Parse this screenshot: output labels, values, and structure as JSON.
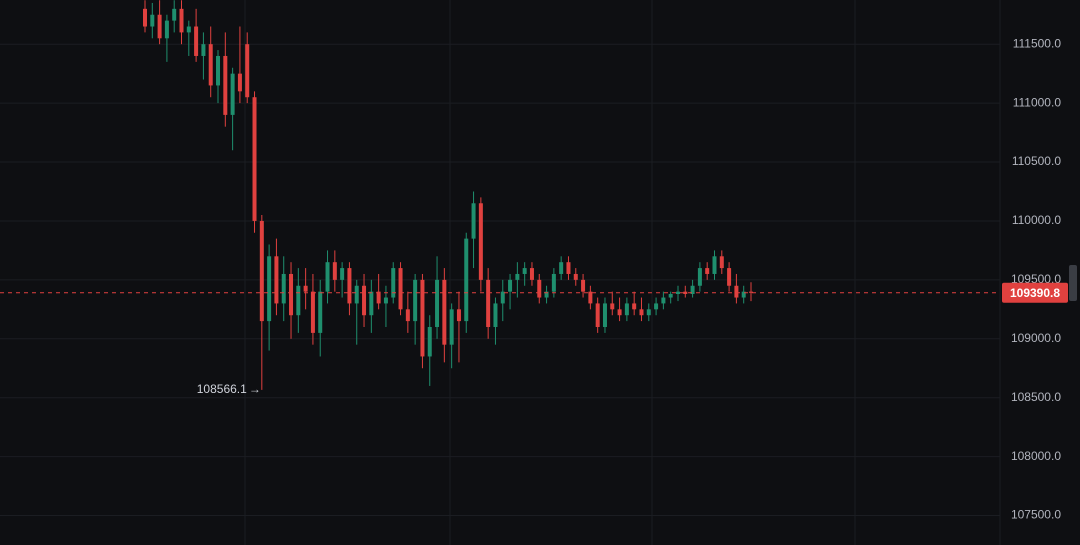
{
  "chart_data": {
    "type": "candlestick",
    "up_color": "#1f8f6e",
    "down_color": "#e0413f",
    "grid": true,
    "ylim": [
      107250,
      111875
    ],
    "yticks": [
      {
        "value": 107500,
        "label": "107500.0"
      },
      {
        "value": 108000,
        "label": "108000.0"
      },
      {
        "value": 108500,
        "label": "108500.0"
      },
      {
        "value": 109000,
        "label": "109000.0"
      },
      {
        "value": 109500,
        "label": "109500.0"
      },
      {
        "value": 110000,
        "label": "110000.0"
      },
      {
        "value": 110500,
        "label": "110500.0"
      },
      {
        "value": 111000,
        "label": "111000.0"
      },
      {
        "value": 111500,
        "label": "111500.0"
      }
    ],
    "last_price": 109390.8,
    "low_marker": 108566.1,
    "open": [
      111800,
      111650,
      111750,
      111550,
      111700,
      111800,
      111600,
      111650,
      111400,
      111500,
      111150,
      111400,
      110900,
      111250,
      111500,
      111050,
      110000,
      109150,
      109700,
      109300,
      109550,
      109200,
      109450,
      109400,
      109050,
      109400,
      109650,
      109500,
      109600,
      109300,
      109450,
      109200,
      109400,
      109300,
      109350,
      109600,
      109250,
      109150,
      109500,
      108850,
      109100,
      109500,
      108950,
      109250,
      109150,
      109850,
      110150,
      109500,
      109100,
      109300,
      109400,
      109500,
      109550,
      109600,
      109500,
      109350,
      109400,
      109550,
      109650,
      109550,
      109500,
      109400,
      109300,
      109100,
      109300,
      109250,
      109200,
      109300,
      109250,
      109200,
      109250,
      109300,
      109350,
      109380,
      109400,
      109380,
      109450,
      109600,
      109550,
      109700,
      109600,
      109450,
      109350,
      109400
    ],
    "high": [
      111873,
      111850,
      111873,
      111750,
      111873,
      111873,
      111700,
      111800,
      111600,
      111650,
      111450,
      111600,
      111300,
      111650,
      111600,
      111100,
      110050,
      109800,
      109850,
      109700,
      109650,
      109600,
      109600,
      109550,
      109500,
      109750,
      109750,
      109650,
      109650,
      109500,
      109550,
      109500,
      109550,
      109450,
      109650,
      109650,
      109400,
      109550,
      109550,
      109200,
      109700,
      109600,
      109300,
      109400,
      109900,
      110250,
      110200,
      109600,
      109350,
      109500,
      109550,
      109650,
      109650,
      109650,
      109550,
      109450,
      109600,
      109700,
      109700,
      109600,
      109550,
      109450,
      109350,
      109350,
      109400,
      109350,
      109350,
      109400,
      109350,
      109300,
      109350,
      109400,
      109400,
      109450,
      109450,
      109500,
      109650,
      109650,
      109750,
      109750,
      109650,
      109550,
      109450,
      109480
    ],
    "low": [
      111600,
      111550,
      111500,
      111350,
      111600,
      111500,
      111400,
      111350,
      111200,
      111050,
      111000,
      110800,
      110600,
      111000,
      111000,
      109900,
      108566.1,
      108900,
      109200,
      109150,
      109000,
      109050,
      109250,
      108950,
      108850,
      109300,
      109400,
      109350,
      109200,
      108950,
      109100,
      109050,
      109250,
      109100,
      109300,
      109200,
      109050,
      108950,
      108750,
      108600,
      109000,
      108800,
      108750,
      108800,
      109050,
      109600,
      109400,
      109000,
      108950,
      109150,
      109250,
      109350,
      109450,
      109450,
      109300,
      109300,
      109350,
      109500,
      109500,
      109450,
      109350,
      109250,
      109050,
      109050,
      109200,
      109150,
      109150,
      109200,
      109150,
      109150,
      109200,
      109250,
      109300,
      109320,
      109350,
      109350,
      109400,
      109500,
      109500,
      109550,
      109400,
      109300,
      109300,
      109320
    ],
    "close": [
      111650,
      111750,
      111550,
      111700,
      111800,
      111600,
      111650,
      111400,
      111500,
      111150,
      111400,
      110900,
      111250,
      111100,
      111050,
      110000,
      109150,
      109700,
      109300,
      109550,
      109200,
      109450,
      109400,
      109050,
      109400,
      109650,
      109500,
      109600,
      109300,
      109450,
      109200,
      109400,
      109300,
      109350,
      109600,
      109250,
      109150,
      109500,
      108850,
      109100,
      109500,
      108950,
      109250,
      109150,
      109850,
      110150,
      109500,
      109100,
      109300,
      109400,
      109500,
      109550,
      109600,
      109500,
      109350,
      109400,
      109550,
      109650,
      109550,
      109500,
      109400,
      109300,
      109100,
      109300,
      109250,
      109200,
      109300,
      109250,
      109200,
      109250,
      109300,
      109350,
      109380,
      109400,
      109380,
      109450,
      109600,
      109550,
      109700,
      109600,
      109450,
      109350,
      109400,
      109390.8
    ]
  }
}
